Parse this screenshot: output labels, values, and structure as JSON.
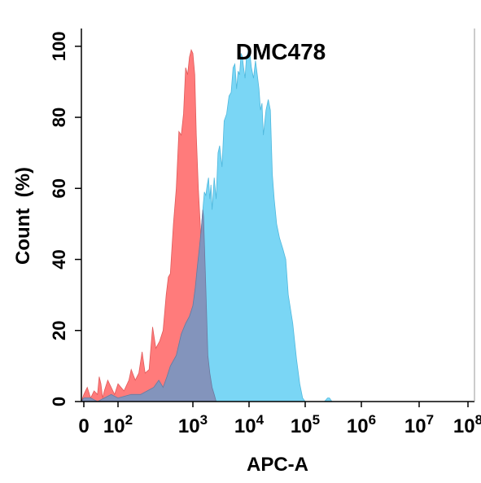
{
  "chart_data": {
    "type": "area",
    "title": "DMC478",
    "xlabel": "APC-A",
    "ylabel": "Count  (%)",
    "xscale": "biexponential-log",
    "xlim": [
      -10,
      100000000
    ],
    "ylim": [
      0,
      105
    ],
    "x_ticks": [
      {
        "value": 0,
        "base": "0",
        "exp": ""
      },
      {
        "value": 100,
        "base": "10",
        "exp": "2"
      },
      {
        "value": 1000,
        "base": "10",
        "exp": "3"
      },
      {
        "value": 10000,
        "base": "10",
        "exp": "4"
      },
      {
        "value": 100000,
        "base": "10",
        "exp": "5"
      },
      {
        "value": 1000000,
        "base": "10",
        "exp": "6"
      },
      {
        "value": 10000000,
        "base": "10",
        "exp": "7"
      },
      {
        "value": 100000000,
        "base": "10",
        "exp": "8"
      }
    ],
    "y_ticks": [
      "0",
      "20",
      "40",
      "60",
      "80",
      "100"
    ],
    "grid": false,
    "series": [
      {
        "color": "#ff7b7b",
        "points": [
          [
            -10,
            0
          ],
          [
            0,
            2
          ],
          [
            10,
            4
          ],
          [
            20,
            1
          ],
          [
            30,
            3
          ],
          [
            40,
            2
          ],
          [
            45,
            7
          ],
          [
            50,
            5
          ],
          [
            55,
            1
          ],
          [
            60,
            3
          ],
          [
            70,
            6
          ],
          [
            80,
            4
          ],
          [
            90,
            2
          ],
          [
            100,
            5
          ],
          [
            120,
            3
          ],
          [
            140,
            6
          ],
          [
            150,
            9
          ],
          [
            170,
            6
          ],
          [
            190,
            8
          ],
          [
            210,
            14
          ],
          [
            230,
            8
          ],
          [
            260,
            9
          ],
          [
            290,
            21
          ],
          [
            320,
            15
          ],
          [
            360,
            17
          ],
          [
            400,
            20
          ],
          [
            440,
            30
          ],
          [
            470,
            35
          ],
          [
            500,
            36
          ],
          [
            550,
            50
          ],
          [
            600,
            60
          ],
          [
            650,
            76
          ],
          [
            700,
            75
          ],
          [
            750,
            81
          ],
          [
            800,
            94
          ],
          [
            850,
            92
          ],
          [
            900,
            97
          ],
          [
            950,
            99
          ],
          [
            1000,
            98
          ],
          [
            1080,
            92
          ],
          [
            1150,
            75
          ],
          [
            1250,
            60
          ],
          [
            1350,
            50
          ],
          [
            1450,
            40
          ],
          [
            1550,
            30
          ],
          [
            1700,
            20
          ],
          [
            1850,
            13
          ],
          [
            2000,
            8
          ],
          [
            2200,
            4
          ],
          [
            2400,
            2
          ],
          [
            2600,
            0
          ]
        ]
      },
      {
        "color": "#7ad6f5",
        "points": [
          [
            -10,
            0
          ],
          [
            0,
            1
          ],
          [
            20,
            1
          ],
          [
            40,
            0
          ],
          [
            60,
            1
          ],
          [
            80,
            2
          ],
          [
            100,
            1
          ],
          [
            150,
            2
          ],
          [
            200,
            2
          ],
          [
            300,
            4
          ],
          [
            350,
            6
          ],
          [
            400,
            4
          ],
          [
            450,
            7
          ],
          [
            500,
            10
          ],
          [
            600,
            13
          ],
          [
            700,
            19
          ],
          [
            800,
            22
          ],
          [
            900,
            24
          ],
          [
            1000,
            27
          ],
          [
            1100,
            32
          ],
          [
            1200,
            38
          ],
          [
            1300,
            43
          ],
          [
            1400,
            48
          ],
          [
            1500,
            54
          ],
          [
            1600,
            59
          ],
          [
            1700,
            58
          ],
          [
            1800,
            61
          ],
          [
            1900,
            63
          ],
          [
            2000,
            57
          ],
          [
            2100,
            61
          ],
          [
            2200,
            54
          ],
          [
            2400,
            63
          ],
          [
            2600,
            57
          ],
          [
            2800,
            70
          ],
          [
            3000,
            72
          ],
          [
            3300,
            66
          ],
          [
            3600,
            79
          ],
          [
            4000,
            81
          ],
          [
            4400,
            86
          ],
          [
            4800,
            87
          ],
          [
            5200,
            94
          ],
          [
            5600,
            95
          ],
          [
            6000,
            88
          ],
          [
            6400,
            93
          ],
          [
            6800,
            92
          ],
          [
            7200,
            98
          ],
          [
            7600,
            97
          ],
          [
            8000,
            94
          ],
          [
            8500,
            91
          ],
          [
            9000,
            97
          ],
          [
            9500,
            98
          ],
          [
            10000,
            100
          ],
          [
            11000,
            94
          ],
          [
            12000,
            91
          ],
          [
            13000,
            96
          ],
          [
            14000,
            92
          ],
          [
            15000,
            88
          ],
          [
            16000,
            82
          ],
          [
            17000,
            84
          ],
          [
            18000,
            75
          ],
          [
            20000,
            82
          ],
          [
            22000,
            85
          ],
          [
            24000,
            82
          ],
          [
            26000,
            64
          ],
          [
            28000,
            57
          ],
          [
            31000,
            50
          ],
          [
            35000,
            46
          ],
          [
            40000,
            43
          ],
          [
            45000,
            40
          ],
          [
            50000,
            30
          ],
          [
            60000,
            22
          ],
          [
            70000,
            12
          ],
          [
            80000,
            5
          ],
          [
            90000,
            1
          ],
          [
            100000,
            0
          ],
          [
            220000,
            0
          ],
          [
            250000,
            1
          ],
          [
            270000,
            1
          ],
          [
            300000,
            0
          ]
        ]
      },
      {
        "color": "#8490b8",
        "points": [
          [
            -10,
            0
          ],
          [
            0,
            1
          ],
          [
            20,
            1
          ],
          [
            40,
            0
          ],
          [
            60,
            1
          ],
          [
            80,
            2
          ],
          [
            100,
            1
          ],
          [
            150,
            2
          ],
          [
            200,
            2
          ],
          [
            300,
            4
          ],
          [
            350,
            6
          ],
          [
            400,
            4
          ],
          [
            450,
            7
          ],
          [
            500,
            10
          ],
          [
            600,
            13
          ],
          [
            700,
            19
          ],
          [
            800,
            22
          ],
          [
            900,
            24
          ],
          [
            1000,
            27
          ],
          [
            1100,
            32
          ],
          [
            1200,
            38
          ],
          [
            1300,
            43
          ],
          [
            1400,
            48
          ],
          [
            1500,
            54
          ],
          [
            1550,
            52
          ],
          [
            1700,
            32
          ],
          [
            1850,
            13
          ],
          [
            2000,
            8
          ],
          [
            2200,
            4
          ],
          [
            2400,
            2
          ],
          [
            2600,
            0
          ]
        ]
      }
    ]
  }
}
